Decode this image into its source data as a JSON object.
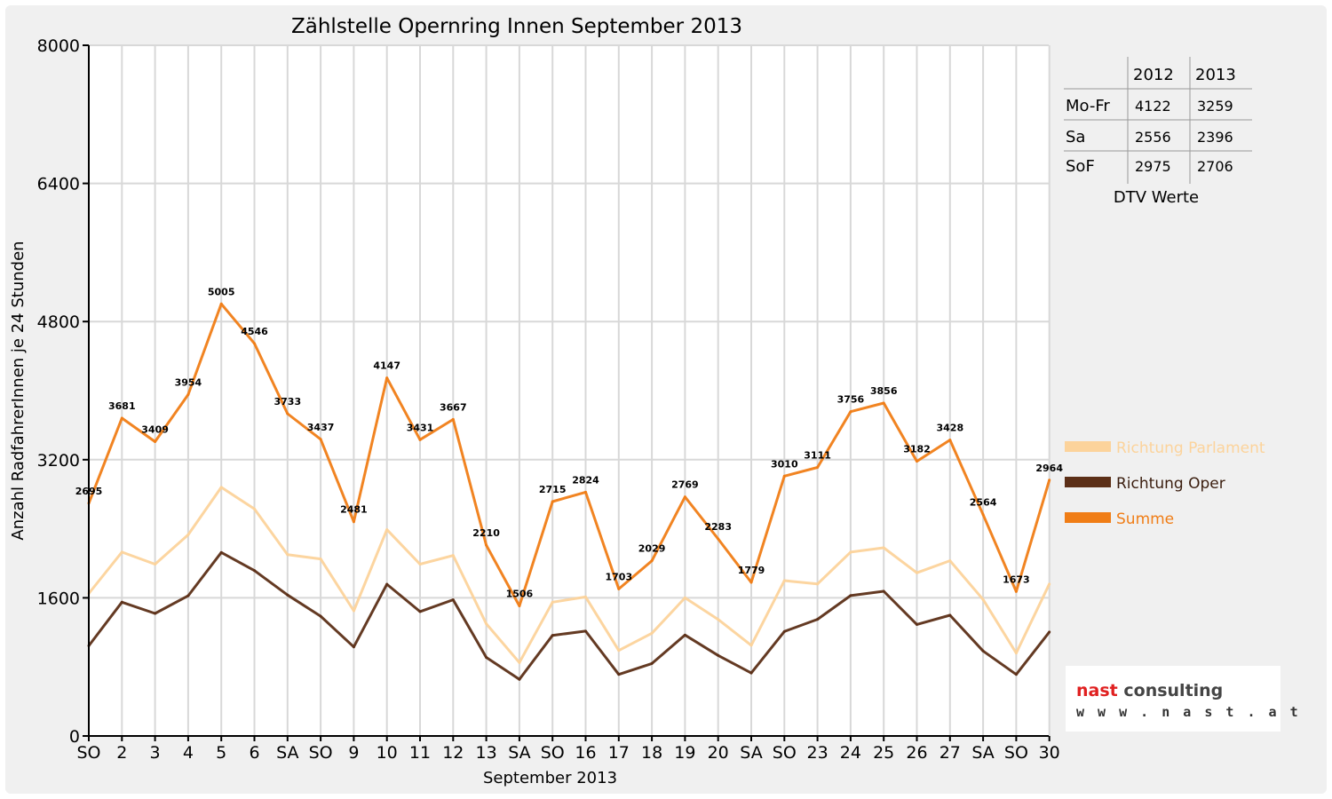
{
  "chart_data": {
    "type": "line",
    "title": "Zählstelle Opernring Innen September 2013",
    "xlabel": "September 2013",
    "ylabel": "Anzahl RadfahrerInnen je 24 Stunden",
    "ylim": [
      0,
      8000
    ],
    "yticks": [
      "0",
      "1600",
      "3200",
      "4800",
      "6400",
      "8000"
    ],
    "grid": true,
    "legend_position": "right",
    "categories": [
      "SO",
      "2",
      "3",
      "4",
      "5",
      "6",
      "SA",
      "SO",
      "9",
      "10",
      "11",
      "12",
      "13",
      "SA",
      "SO",
      "16",
      "17",
      "18",
      "19",
      "20",
      "SA",
      "SO",
      "23",
      "24",
      "25",
      "26",
      "27",
      "SA",
      "SO",
      "30"
    ],
    "category_colors": [
      "#e00000",
      "#000000",
      "#000000",
      "#000000",
      "#000000",
      "#000000",
      "#000000",
      "#e00000",
      "#000000",
      "#000000",
      "#000000",
      "#000000",
      "#000000",
      "#000000",
      "#e00000",
      "#000000",
      "#000000",
      "#000000",
      "#000000",
      "#000000",
      "#000000",
      "#e00000",
      "#000000",
      "#000000",
      "#000000",
      "#000000",
      "#000000",
      "#000000",
      "#e00000",
      "#000000"
    ],
    "series": [
      {
        "name": "Richtung Parlament",
        "color": "#fcd39b",
        "values": [
          1650,
          2130,
          1990,
          2330,
          2880,
          2630,
          2100,
          2050,
          1450,
          2390,
          1990,
          2090,
          1300,
          850,
          1550,
          1610,
          990,
          1190,
          1600,
          1350,
          1050,
          1800,
          1760,
          2130,
          2180,
          1890,
          2030,
          1580,
          960,
          1760
        ]
      },
      {
        "name": "Richtung Oper",
        "color": "#5c2f17",
        "values": [
          1045,
          1550,
          1419,
          1624,
          2125,
          1916,
          1633,
          1387,
          1031,
          1757,
          1441,
          1577,
          910,
          656,
          1165,
          1214,
          713,
          839,
          1169,
          933,
          729,
          1210,
          1351,
          1626,
          1676,
          1292,
          1398,
          984,
          713,
          1204
        ]
      },
      {
        "name": "Summe",
        "color": "#f07d16",
        "values": [
          2695,
          3681,
          3409,
          3954,
          5005,
          4546,
          3733,
          3437,
          2481,
          4147,
          3431,
          3667,
          2210,
          1506,
          2715,
          2824,
          1703,
          2029,
          2769,
          2283,
          1779,
          3010,
          3111,
          3756,
          3856,
          3182,
          3428,
          2564,
          1673,
          2964
        ]
      }
    ],
    "data_labels": [
      "2695",
      "3681",
      "3409",
      "3954",
      "5005",
      "4546",
      "3733",
      "3437",
      "2481",
      "4147",
      "3431",
      "3667",
      "2210",
      "1506",
      "2715",
      "2824",
      "1703",
      "2029",
      "2769",
      "2283",
      "1779",
      "3010",
      "3111",
      "3756",
      "3856",
      "3182",
      "3428",
      "2564",
      "1673",
      "2964"
    ]
  },
  "dtv_table": {
    "headers": [
      "",
      "2012",
      "2013"
    ],
    "rows": [
      [
        "Mo-Fr",
        "4122",
        "3259"
      ],
      [
        "Sa",
        "2556",
        "2396"
      ],
      [
        "SoF",
        "2975",
        "2706"
      ]
    ],
    "caption": "DTV Werte"
  },
  "logo": {
    "word1": "nast",
    "word2": "consulting",
    "url": "w w w . n a s t . a t",
    "color1": "#e02020",
    "color2": "#444444"
  }
}
